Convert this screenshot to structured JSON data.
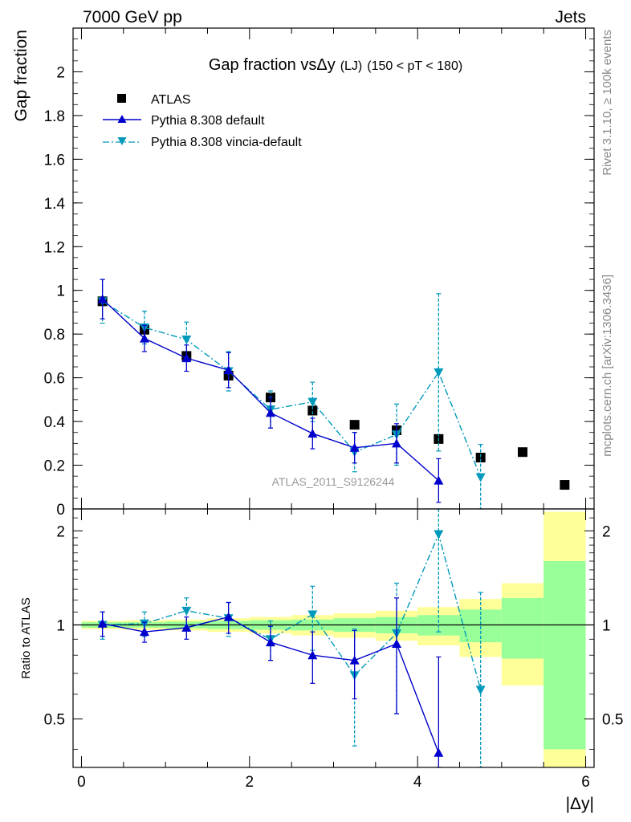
{
  "header": {
    "left": "7000 GeV pp",
    "right": "Jets"
  },
  "side_labels": {
    "rivet": "Rivet 3.1.10, ≥ 100k events",
    "mcplots": "mcplots.cern.ch [arXiv:1306.3436]"
  },
  "chart_data": [
    {
      "type": "scatter",
      "title": "Gap fraction vs",
      "title_symbol": "Δy",
      "title_suffix_small": "(LJ)",
      "title_suffix": "(150 < pT < 180)",
      "ylabel": "Gap fraction",
      "xlim": [
        -0.1,
        6.1
      ],
      "ylim": [
        0,
        2.2
      ],
      "yticks": [
        0,
        0.2,
        0.4,
        0.6,
        0.8,
        1,
        1.2,
        1.4,
        1.6,
        1.8,
        2
      ],
      "ytick_labels": [
        "0",
        "0.2",
        "0.4",
        "0.6",
        "0.8",
        "1",
        "1.2",
        "1.4",
        "1.6",
        "1.8",
        "2"
      ],
      "watermark": "ATLAS_2011_S9126244",
      "legend": [
        "ATLAS",
        "Pythia 8.308 default",
        "Pythia 8.308 vincia-default"
      ],
      "series": [
        {
          "name": "ATLAS",
          "color": "#000000",
          "marker": "square",
          "x": [
            0.25,
            0.75,
            1.25,
            1.75,
            2.25,
            2.75,
            3.25,
            3.75,
            4.25,
            4.75,
            5.25,
            5.75
          ],
          "y": [
            0.95,
            0.82,
            0.7,
            0.61,
            0.51,
            0.45,
            0.385,
            0.36,
            0.32,
            0.235,
            0.26,
            0.11
          ]
        },
        {
          "name": "Pythia 8.308 default",
          "color": "#0000cc",
          "marker": "triangle-up",
          "line": "solid",
          "x": [
            0.25,
            0.75,
            1.25,
            1.75,
            2.25,
            2.75,
            3.25,
            3.75,
            4.25
          ],
          "y": [
            0.96,
            0.78,
            0.69,
            0.635,
            0.44,
            0.345,
            0.28,
            0.3,
            0.13
          ],
          "err": [
            0.09,
            0.06,
            0.06,
            0.08,
            0.07,
            0.07,
            0.07,
            0.09,
            0.1
          ]
        },
        {
          "name": "Pythia 8.308 vincia-default",
          "color": "#0099bb",
          "marker": "triangle-down",
          "line": "dashdot",
          "x": [
            0.25,
            0.75,
            1.25,
            1.75,
            2.25,
            2.75,
            3.25,
            3.75,
            4.25,
            4.75
          ],
          "y": [
            0.95,
            0.83,
            0.775,
            0.63,
            0.455,
            0.49,
            0.26,
            0.34,
            0.625,
            0.145
          ],
          "err": [
            0.1,
            0.075,
            0.08,
            0.09,
            0.085,
            0.09,
            0.09,
            0.14,
            0.36,
            0.15
          ]
        }
      ]
    },
    {
      "type": "scatter",
      "ylabel": "Ratio to ATLAS",
      "xlabel": "|Δy|",
      "xlim": [
        -0.1,
        6.1
      ],
      "ylim": [
        0.35,
        2.35
      ],
      "yscale": "log",
      "xticks": [
        0,
        2,
        4,
        6
      ],
      "xtick_labels": [
        "0",
        "2",
        "4",
        "6"
      ],
      "yticks": [
        0.5,
        1,
        2
      ],
      "ytick_labels": [
        "0.5",
        "1",
        "2"
      ],
      "bands": {
        "x_edges": [
          0,
          0.5,
          1,
          1.5,
          2,
          2.5,
          3,
          3.5,
          4,
          4.5,
          5,
          5.5,
          6
        ],
        "green_halfwidth": [
          0.02,
          0.02,
          0.025,
          0.03,
          0.035,
          0.04,
          0.05,
          0.06,
          0.075,
          0.12,
          0.22,
          0.6
        ],
        "yellow_halfwidth": [
          0.03,
          0.035,
          0.04,
          0.05,
          0.06,
          0.075,
          0.09,
          0.11,
          0.14,
          0.21,
          0.36,
          1.3
        ]
      },
      "series": [
        {
          "name": "Pythia 8.308 default",
          "color": "#0000cc",
          "marker": "triangle-up",
          "line": "solid",
          "x": [
            0.25,
            0.75,
            1.25,
            1.75,
            2.25,
            2.75,
            3.25,
            3.75,
            4.25
          ],
          "y": [
            1.01,
            0.95,
            0.98,
            1.06,
            0.88,
            0.8,
            0.77,
            0.87,
            0.39
          ],
          "err": [
            0.09,
            0.07,
            0.08,
            0.12,
            0.11,
            0.15,
            0.19,
            0.35,
            0.4
          ]
        },
        {
          "name": "Pythia 8.308 vincia-default",
          "color": "#0099bb",
          "marker": "triangle-down",
          "line": "dashdot",
          "x": [
            0.25,
            0.75,
            1.25,
            1.75,
            2.25,
            2.75,
            3.25,
            3.75,
            4.25,
            4.75
          ],
          "y": [
            1.0,
            1.01,
            1.11,
            1.05,
            0.9,
            1.08,
            0.69,
            0.94,
            1.95,
            0.62
          ],
          "err": [
            0.1,
            0.09,
            0.11,
            0.13,
            0.13,
            0.25,
            0.28,
            0.42,
            1.0,
            0.65
          ]
        }
      ]
    }
  ]
}
